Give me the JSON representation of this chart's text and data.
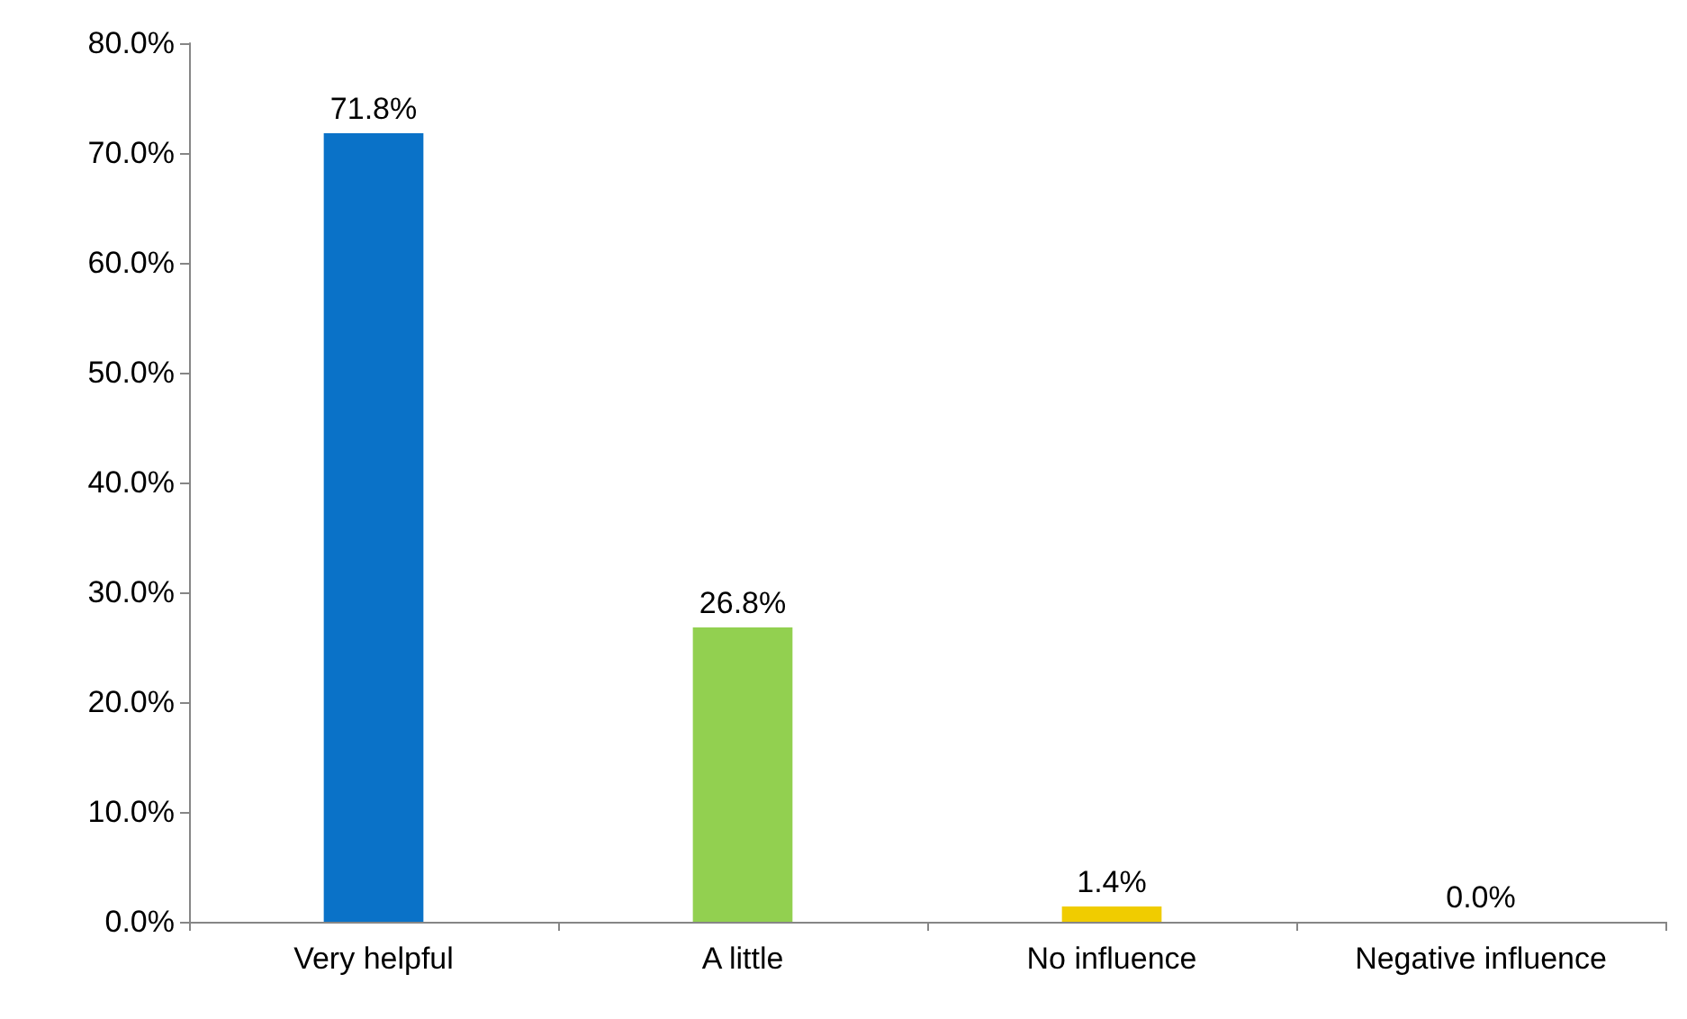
{
  "chart_data": {
    "type": "bar",
    "categories": [
      "Very helpful",
      "A little",
      "No influence",
      "Negative influence"
    ],
    "values": [
      71.8,
      26.8,
      1.4,
      0.0
    ],
    "colors": [
      "#0a72c8",
      "#92d050",
      "#f0cc00",
      "#ffc000"
    ],
    "value_labels": [
      "71.8%",
      "26.8%",
      "1.4%",
      "0.0%"
    ],
    "ylim": [
      0,
      80
    ],
    "yticks": [
      {
        "value": 0,
        "label": "0.0%"
      },
      {
        "value": 10,
        "label": "10.0%"
      },
      {
        "value": 20,
        "label": "20.0%"
      },
      {
        "value": 30,
        "label": "30.0%"
      },
      {
        "value": 40,
        "label": "40.0%"
      },
      {
        "value": 50,
        "label": "50.0%"
      },
      {
        "value": 60,
        "label": "60.0%"
      },
      {
        "value": 70,
        "label": "70.0%"
      },
      {
        "value": 80,
        "label": "80.0%"
      }
    ],
    "grid": false
  }
}
